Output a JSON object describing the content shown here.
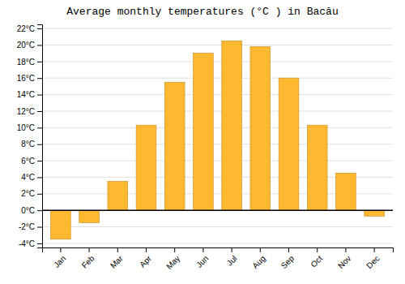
{
  "chart_data": {
    "type": "bar",
    "title": "Average monthly temperatures (°C ) in Bacău",
    "categories": [
      "Jan",
      "Feb",
      "Mar",
      "Apr",
      "May",
      "Jun",
      "Jul",
      "Aug",
      "Sep",
      "Oct",
      "Nov",
      "Dec"
    ],
    "values": [
      -3.5,
      -1.5,
      3.5,
      10.3,
      15.5,
      19.0,
      20.5,
      19.8,
      16.0,
      10.3,
      4.5,
      -0.7
    ],
    "color": "#FFB830",
    "ylim": [
      -4.5,
      22.5
    ],
    "yticks": [
      {
        "value": -4,
        "label": "-4°C"
      },
      {
        "value": -2,
        "label": "-2°C"
      },
      {
        "value": 0,
        "label": "0°C"
      },
      {
        "value": 2,
        "label": "2°C"
      },
      {
        "value": 4,
        "label": "4°C"
      },
      {
        "value": 6,
        "label": "6°C"
      },
      {
        "value": 8,
        "label": "8°C"
      },
      {
        "value": 10,
        "label": "10°C"
      },
      {
        "value": 12,
        "label": "12°C"
      },
      {
        "value": 14,
        "label": "14°C"
      },
      {
        "value": 16,
        "label": "16°C"
      },
      {
        "value": 18,
        "label": "18°C"
      },
      {
        "value": 20,
        "label": "20°C"
      },
      {
        "value": 22,
        "label": "22°C"
      }
    ],
    "grid": true
  }
}
